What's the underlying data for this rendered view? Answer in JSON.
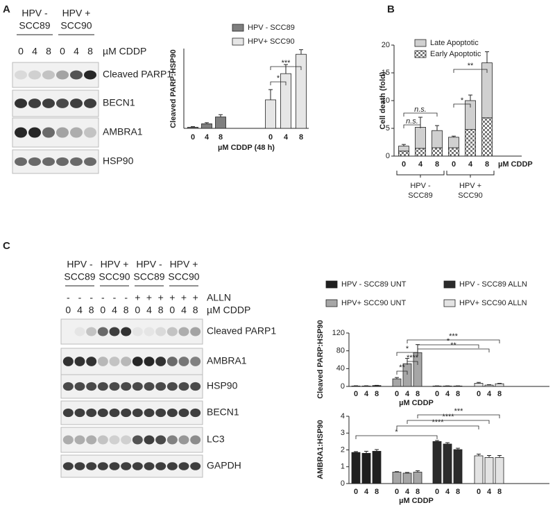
{
  "panel_labels": [
    "A",
    "B",
    "C"
  ],
  "blot_a": {
    "groups": [
      [
        "HPV -",
        "SCC89"
      ],
      [
        "HPV +",
        "SCC90"
      ]
    ],
    "lanes": [
      "0",
      "4",
      "8",
      "0",
      "4",
      "8"
    ],
    "lane_label": "µM CDDP",
    "rows": [
      "Cleaved PARP1",
      "BECN1",
      "AMBRA1",
      "HSP90"
    ]
  },
  "blot_c": {
    "groups": [
      [
        "HPV -",
        "SCC89"
      ],
      [
        "HPV +",
        "SCC90"
      ],
      [
        "HPV -",
        "SCC89"
      ],
      [
        "HPV +",
        "SCC90"
      ]
    ],
    "treatment": [
      "-",
      "-",
      "-",
      "-",
      "-",
      "-",
      "+",
      "+",
      "+",
      "+",
      "+",
      "+"
    ],
    "treatment_label": "ALLN",
    "lanes": [
      "0",
      "4",
      "8",
      "0",
      "4",
      "8",
      "0",
      "4",
      "8",
      "0",
      "4",
      "8"
    ],
    "lane_label": "µM CDDP",
    "rows": [
      "Cleaved PARP1",
      "AMBRA1",
      "HSP90",
      "BECN1",
      "LC3",
      "GAPDH"
    ]
  },
  "chart_data": [
    {
      "type": "bar",
      "y_label": "Cleaved PARP:HSP90",
      "x_label": "µM CDDP (48 h)",
      "categories": [
        "0",
        "4",
        "8",
        "0",
        "4",
        "8"
      ],
      "ylim": [
        0,
        70
      ],
      "series": [
        {
          "name": "HPV - SCC89",
          "color": "#7f7f7f",
          "values": [
            1,
            4,
            10,
            null,
            null,
            null
          ],
          "errors": [
            0.5,
            1,
            2,
            null,
            null,
            null
          ]
        },
        {
          "name": "HPV+ SCC90",
          "color": "#e6e6e6",
          "values": [
            null,
            null,
            null,
            25,
            48,
            65
          ],
          "errors": [
            null,
            null,
            null,
            9,
            8,
            4
          ]
        }
      ],
      "annotations": [
        "*",
        "***"
      ]
    },
    {
      "type": "stacked_bar",
      "y_label": "Cell death (fold)",
      "x_label": "µM CDDP",
      "categories": [
        "0",
        "4",
        "8",
        "0",
        "4",
        "8"
      ],
      "groups": [
        [
          "HPV -",
          "SCC89"
        ],
        [
          "HPV +",
          "SCC90"
        ]
      ],
      "ylim": [
        0,
        20
      ],
      "yticks": [
        0,
        5,
        10,
        15,
        20
      ],
      "series": [
        {
          "name": "Late Apoptotic",
          "color": "#d0d0d0",
          "values": [
            0.9,
            3.8,
            3.1,
            1.9,
            5.2,
            9.9
          ],
          "errors": [
            0.3,
            1.8,
            0.9,
            0.2,
            1,
            2
          ]
        },
        {
          "name": "Early Apoptotic",
          "color": "#bfbfbf",
          "pattern": "checker",
          "values": [
            0.9,
            1.4,
            1.5,
            1.5,
            4.8,
            6.9
          ],
          "errors": [
            0.2,
            0.3,
            0.3,
            0.3,
            1.5,
            1
          ]
        }
      ],
      "annotations": [
        "n.s.",
        "n.s.",
        "*",
        "**"
      ]
    },
    {
      "type": "bar",
      "y_label": "Cleaved PARP:HSP90",
      "x_label": "µM CDDP",
      "categories": [
        "0",
        "4",
        "8",
        "0",
        "4",
        "8",
        "0",
        "4",
        "8",
        "0",
        "4",
        "8"
      ],
      "ylim": [
        0,
        120
      ],
      "yticks": [
        0,
        40,
        80,
        120
      ],
      "series": [
        {
          "name": "HPV - SCC89 UNT",
          "color": "#1f1f1f",
          "values": [
            1,
            1,
            2,
            null,
            null,
            null,
            null,
            null,
            null,
            null,
            null,
            null
          ],
          "errors": [
            0.5,
            0.5,
            0.5,
            null,
            null,
            null,
            null,
            null,
            null,
            null,
            null,
            null
          ]
        },
        {
          "name": "HPV+ SCC90 UNT",
          "color": "#a6a6a6",
          "values": [
            null,
            null,
            null,
            17,
            51,
            76,
            null,
            null,
            null,
            null,
            null,
            null
          ],
          "errors": [
            null,
            null,
            null,
            3,
            12,
            18,
            null,
            null,
            null,
            null,
            null,
            null
          ]
        },
        {
          "name": "HPV - SCC89 ALLN",
          "color": "#2b2b2b",
          "values": [
            null,
            null,
            null,
            null,
            null,
            null,
            1,
            1,
            1,
            null,
            null,
            null
          ],
          "errors": [
            null,
            null,
            null,
            null,
            null,
            null,
            0.3,
            0.3,
            0.3,
            null,
            null,
            null
          ]
        },
        {
          "name": "HPV+ SCC90 ALLN",
          "color": "#e3e3e3",
          "values": [
            null,
            null,
            null,
            null,
            null,
            null,
            null,
            null,
            null,
            7,
            3,
            6
          ],
          "errors": [
            null,
            null,
            null,
            null,
            null,
            null,
            null,
            null,
            null,
            2,
            1,
            1
          ]
        }
      ],
      "annotations": [
        "**",
        "*",
        "****",
        "*",
        "**",
        "***"
      ]
    },
    {
      "type": "bar",
      "y_label": "AMBRA1:HSP90",
      "x_label": "µM CDDP",
      "categories": [
        "0",
        "4",
        "8",
        "0",
        "4",
        "8",
        "0",
        "4",
        "8",
        "0",
        "4",
        "8"
      ],
      "ylim": [
        0,
        4
      ],
      "yticks": [
        0,
        1,
        2,
        3,
        4
      ],
      "series": [
        {
          "color": "#1f1f1f",
          "values": [
            1.85,
            1.8,
            1.92,
            null,
            null,
            null,
            null,
            null,
            null,
            null,
            null,
            null
          ],
          "errors": [
            0.05,
            0.12,
            0.1,
            null,
            null,
            null,
            null,
            null,
            null,
            null,
            null,
            null
          ]
        },
        {
          "color": "#a6a6a6",
          "values": [
            null,
            null,
            null,
            0.68,
            0.62,
            0.68,
            null,
            null,
            null,
            null,
            null,
            null
          ],
          "errors": [
            null,
            null,
            null,
            0.03,
            0.04,
            0.08,
            null,
            null,
            null,
            null,
            null,
            null
          ]
        },
        {
          "color": "#2b2b2b",
          "values": [
            null,
            null,
            null,
            null,
            null,
            null,
            2.5,
            2.35,
            2.02,
            null,
            null,
            null
          ],
          "errors": [
            null,
            null,
            null,
            null,
            null,
            null,
            0.06,
            0.08,
            0.08,
            null,
            null,
            null
          ]
        },
        {
          "color": "#e3e3e3",
          "values": [
            null,
            null,
            null,
            null,
            null,
            null,
            null,
            null,
            null,
            1.65,
            1.55,
            1.55
          ],
          "errors": [
            null,
            null,
            null,
            null,
            null,
            null,
            null,
            null,
            null,
            0.1,
            0.12,
            0.12
          ]
        }
      ],
      "annotations": [
        "*",
        "****",
        "****",
        "***"
      ]
    }
  ]
}
